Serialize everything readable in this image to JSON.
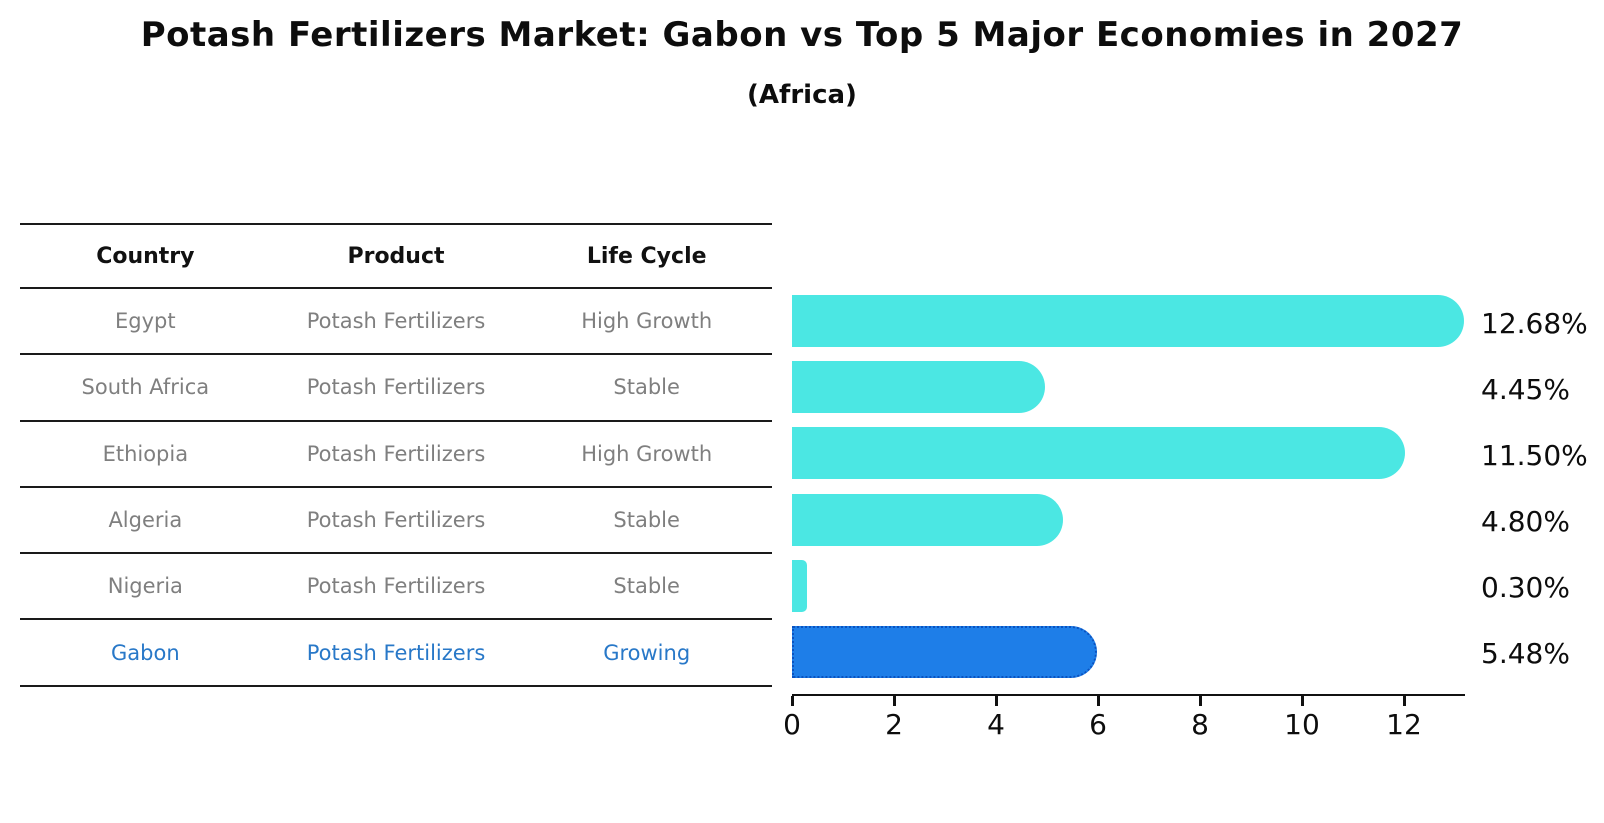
{
  "title": "Potash Fertilizers Market: Gabon vs Top 5 Major Economies in 2027",
  "subtitle": "(Africa)",
  "table": {
    "headers": [
      "Country",
      "Product",
      "Life Cycle"
    ],
    "rows": [
      {
        "country": "Egypt",
        "product": "Potash Fertilizers",
        "life_cycle": "High Growth",
        "highlight": false
      },
      {
        "country": "South Africa",
        "product": "Potash Fertilizers",
        "life_cycle": "Stable",
        "highlight": false
      },
      {
        "country": "Ethiopia",
        "product": "Potash Fertilizers",
        "life_cycle": "High Growth",
        "highlight": false
      },
      {
        "country": "Algeria",
        "product": "Potash Fertilizers",
        "life_cycle": "Stable",
        "highlight": false
      },
      {
        "country": "Nigeria",
        "product": "Potash Fertilizers",
        "life_cycle": "Stable",
        "highlight": false
      },
      {
        "country": "Gabon",
        "product": "Potash Fertilizers",
        "life_cycle": "Growing",
        "highlight": true
      }
    ]
  },
  "chart_data": {
    "type": "bar",
    "orientation": "horizontal",
    "title": "Potash Fertilizers Market: Gabon vs Top 5 Major Economies in 2027 (Africa)",
    "categories": [
      "Egypt",
      "South Africa",
      "Ethiopia",
      "Algeria",
      "Nigeria",
      "Gabon"
    ],
    "values": [
      12.68,
      4.45,
      11.5,
      4.8,
      0.3,
      5.48
    ],
    "value_labels": [
      "12.68%",
      "4.45%",
      "11.50%",
      "4.80%",
      "0.30%",
      "5.48%"
    ],
    "x_ticks": [
      0,
      2,
      4,
      6,
      8,
      10,
      12
    ],
    "x_tick_labels": [
      "0",
      "2",
      "4",
      "6",
      "8",
      "10",
      "12"
    ],
    "xlim": [
      0,
      13.2
    ],
    "grid": false,
    "legend": "none",
    "highlight_index": 5
  },
  "colors": {
    "bar_default": "#4be7e3",
    "bar_highlight": "#1e7ee8",
    "bar_highlight_border": "#0a52c0",
    "highlight_text": "#2878c8",
    "row_text": "#7f7f7f",
    "axis_text": "#0d0d0d"
  }
}
